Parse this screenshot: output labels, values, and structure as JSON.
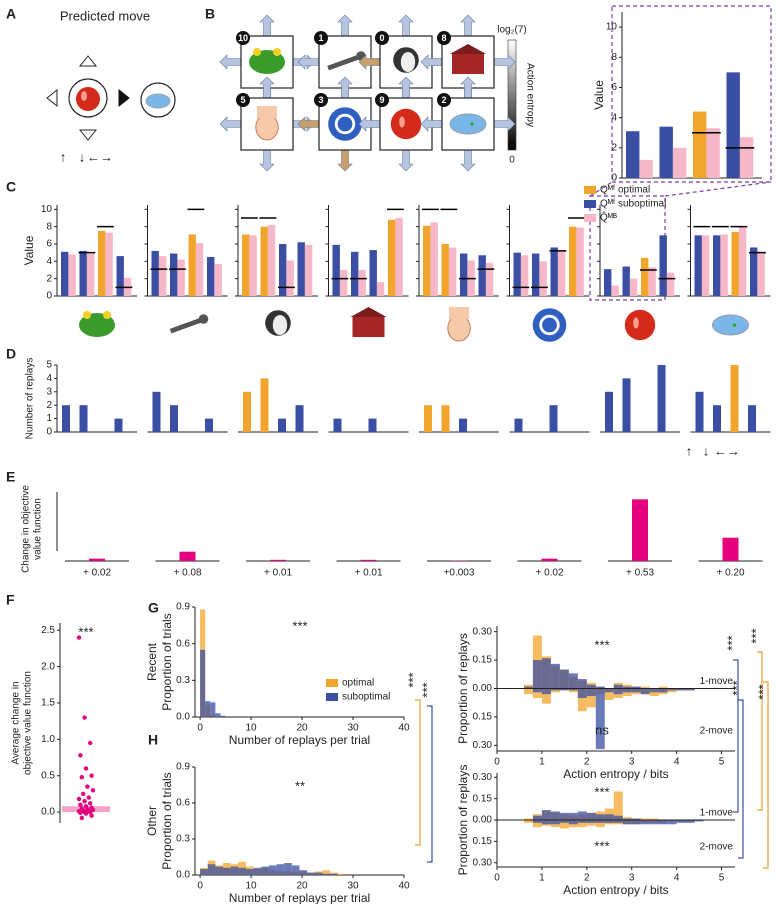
{
  "panel_labels": [
    "A",
    "B",
    "C",
    "D",
    "E",
    "F",
    "G",
    "H"
  ],
  "predicted_move": {
    "title": "Predicted move"
  },
  "state_graph": {
    "state_numbers": [
      "10",
      "1",
      "0",
      "8",
      "5",
      "3",
      "9",
      "2"
    ],
    "colorbar": {
      "top_label": "log₂(7)",
      "label": "Action entropy",
      "bottom_label": "0"
    }
  },
  "significance": {
    "left": [
      "***",
      "***"
    ],
    "right": [
      "***",
      "***",
      "***",
      "***"
    ]
  },
  "chart_data": [
    {
      "type": "qvalues",
      "ylabel": "Value",
      "ylim": [
        0,
        11
      ],
      "yticks": [
        0,
        2,
        4,
        6,
        8,
        10
      ],
      "colors": {
        "optimal": "#f2a52c",
        "suboptimal": "#3a4fa3",
        "mb": "#f6b8c8",
        "marker": "#000000"
      },
      "panels": [
        {
          "mf": [
            3.1,
            3.4,
            4.4,
            7.0
          ],
          "mb": [
            1.2,
            2.0,
            3.3,
            2.7
          ],
          "optimal": [
            false,
            false,
            true,
            false
          ],
          "marker": [
            null,
            null,
            3.0,
            2.0
          ]
        }
      ]
    },
    {
      "type": "qvalues",
      "ylabel": "Value",
      "ylim": [
        0,
        10.5
      ],
      "yticks": [
        0,
        2,
        4,
        6,
        8,
        10
      ],
      "colors": {
        "optimal": "#f2a52c",
        "suboptimal": "#3a4fa3",
        "mb": "#f6b8c8",
        "marker": "#000000"
      },
      "legend": [
        {
          "name": "Qᴹᶠ optimal",
          "color": "#f2a52c"
        },
        {
          "name": "Qᴹᶠ suboptimal",
          "color": "#3a4fa3"
        },
        {
          "name": "Q̂ᴹᴮ",
          "color": "#f6b8c8"
        }
      ],
      "action_labels": [
        "↑",
        "↓",
        "←→"
      ],
      "panels": [
        {
          "mf": [
            5.1,
            5.2,
            7.5,
            4.6
          ],
          "mb": [
            4.8,
            4.9,
            7.3,
            2.1
          ],
          "optimal": [
            false,
            false,
            true,
            false
          ],
          "marker": [
            null,
            5.0,
            8.0,
            1.0
          ]
        },
        {
          "mf": [
            5.2,
            4.9,
            7.1,
            4.5
          ],
          "mb": [
            4.6,
            4.2,
            6.1,
            3.7
          ],
          "optimal": [
            false,
            false,
            true,
            false
          ],
          "marker": [
            3.1,
            3.1,
            10.0,
            null
          ]
        },
        {
          "mf": [
            7.1,
            8.0,
            6.0,
            6.2
          ],
          "mb": [
            7.0,
            8.2,
            4.1,
            5.9
          ],
          "optimal": [
            true,
            true,
            false,
            false
          ],
          "marker": [
            9.0,
            9.0,
            1.0,
            null
          ]
        },
        {
          "mf": [
            5.9,
            5.1,
            5.3,
            8.8
          ],
          "mb": [
            3.0,
            3.0,
            1.6,
            9.0
          ],
          "optimal": [
            false,
            false,
            false,
            true
          ],
          "marker": [
            2.0,
            2.0,
            null,
            10.0
          ]
        },
        {
          "mf": [
            8.1,
            6.0,
            4.9,
            4.7
          ],
          "mb": [
            8.5,
            5.6,
            4.1,
            3.8
          ],
          "optimal": [
            true,
            true,
            false,
            false
          ],
          "marker": [
            10.0,
            10.0,
            2.0,
            3.1
          ]
        },
        {
          "mf": [
            5.0,
            4.9,
            5.6,
            8.0
          ],
          "mb": [
            4.7,
            4.0,
            5.3,
            7.9
          ],
          "optimal": [
            false,
            false,
            false,
            true
          ],
          "marker": [
            1.0,
            1.0,
            5.2,
            9.0
          ]
        },
        {
          "mf": [
            3.1,
            3.4,
            4.4,
            7.0
          ],
          "mb": [
            1.2,
            2.0,
            3.3,
            2.7
          ],
          "optimal": [
            false,
            false,
            true,
            false
          ],
          "marker": [
            null,
            null,
            3.0,
            2.0
          ]
        },
        {
          "mf": [
            7.0,
            7.0,
            7.4,
            5.6
          ],
          "mb": [
            7.0,
            7.1,
            8.0,
            5.1
          ],
          "optimal": [
            false,
            false,
            true,
            false
          ],
          "marker": [
            8.0,
            8.0,
            8.0,
            5.0
          ]
        }
      ]
    },
    {
      "type": "replays",
      "ylabel": "Number of replays",
      "ylim": [
        0,
        5
      ],
      "yticks": [
        0,
        1,
        2,
        3,
        4,
        5
      ],
      "colors": {
        "optimal": "#f2a52c",
        "suboptimal": "#3a4fa3"
      },
      "action_labels": [
        "↑",
        "↓",
        "←→"
      ],
      "panels": [
        {
          "values": [
            2,
            2,
            0,
            1
          ],
          "optimal": [
            false,
            false,
            false,
            false
          ]
        },
        {
          "values": [
            3,
            2,
            0,
            1
          ],
          "optimal": [
            false,
            false,
            false,
            false
          ]
        },
        {
          "values": [
            3,
            4,
            1,
            2
          ],
          "optimal": [
            true,
            true,
            false,
            false
          ]
        },
        {
          "values": [
            1,
            0,
            1,
            0
          ],
          "optimal": [
            false,
            false,
            false,
            false
          ]
        },
        {
          "values": [
            2,
            2,
            1,
            0
          ],
          "optimal": [
            true,
            true,
            false,
            false
          ]
        },
        {
          "values": [
            1,
            0,
            2,
            0
          ],
          "optimal": [
            false,
            false,
            false,
            false
          ]
        },
        {
          "values": [
            3,
            4,
            0,
            5
          ],
          "optimal": [
            false,
            false,
            false,
            false
          ]
        },
        {
          "values": [
            3,
            2,
            5,
            2
          ],
          "optimal": [
            false,
            false,
            true,
            false
          ]
        }
      ]
    },
    {
      "type": "change",
      "ylabel": [
        "Change in objective",
        "value function"
      ],
      "ylim": [
        0,
        0.55
      ],
      "color": "#e5007d",
      "values": [
        0.02,
        0.08,
        0.01,
        0.01,
        0.003,
        0.02,
        0.53,
        0.2
      ],
      "value_labels": [
        "+ 0.02",
        "+ 0.08",
        "+ 0.01",
        "+ 0.01",
        "+0.003",
        "+ 0.02",
        "+ 0.53",
        "+ 0.20"
      ]
    },
    {
      "type": "strip",
      "ylabel": [
        "Average change in",
        "objective value function"
      ],
      "ylim": [
        -0.15,
        2.6
      ],
      "yticks": [
        {
          "value": 0,
          "label": "0.0"
        },
        {
          "value": 0.5,
          "label": "0.5"
        },
        {
          "value": 1,
          "label": "1.0"
        },
        {
          "value": 1.5,
          "label": "1.5"
        },
        {
          "value": 2,
          "label": "2.0"
        },
        {
          "value": 2.5,
          "label": "2.5"
        }
      ],
      "color": "#e5007d",
      "mean_color": "#f3a3c9",
      "mean": 0.08,
      "values": [
        2.4,
        1.3,
        0.95,
        0.78,
        0.6,
        0.5,
        0.48,
        0.35,
        0.3,
        0.25,
        0.2,
        0.18,
        0.15,
        0.12,
        0.1,
        0.08,
        0.06,
        0.05,
        0.04,
        0.03,
        0.02,
        0.01,
        0.01,
        0,
        0,
        -0.01,
        -0.02,
        -0.05,
        -0.08
      ],
      "annotation": "***"
    },
    {
      "type": "histogram",
      "row_label": "Recent",
      "ylabel": "Proportion of trials",
      "xlabel": "Number of replays per trial",
      "xlim": [
        -1,
        40
      ],
      "xticks": [
        0,
        10,
        20,
        30,
        40
      ],
      "ylim": [
        0,
        0.9
      ],
      "yticks": [
        {
          "value": 0,
          "label": "0.0"
        },
        {
          "value": 0.3,
          "label": "0.3"
        },
        {
          "value": 0.6,
          "label": "0.6"
        },
        {
          "value": 0.9,
          "label": "0.9"
        }
      ],
      "bins": [
        0,
        1,
        2,
        3,
        4,
        5,
        6,
        7,
        8,
        9,
        10
      ],
      "series": [
        {
          "name": "optimal",
          "color": "#f2a52c",
          "values": [
            0.88,
            0.1,
            0.02,
            0.005,
            0,
            0,
            0,
            0,
            0,
            0
          ]
        },
        {
          "name": "suboptimal",
          "color": "#3a4fa3",
          "values": [
            0.55,
            0.13,
            0.12,
            0.03,
            0.01,
            0,
            0,
            0,
            0,
            0
          ]
        }
      ],
      "annotation": "***"
    },
    {
      "type": "mirrored_histogram",
      "ylabel": "Proportion of replays",
      "xlabel": "Action entropy / bits",
      "xlim": [
        0,
        5.3
      ],
      "xticks": [
        0,
        1,
        2,
        3,
        4,
        5
      ],
      "ylim": [
        -0.33,
        0.33
      ],
      "yticks": [
        {
          "value": 0.3,
          "label": "0.30"
        },
        {
          "value": 0.15,
          "label": "0.15"
        },
        {
          "value": 0,
          "label": "0.00"
        },
        {
          "value": -0.15,
          "label": "0.15"
        },
        {
          "value": -0.3,
          "label": "0.30"
        }
      ],
      "bins": [
        0.6,
        0.8,
        1.0,
        1.2,
        1.4,
        1.6,
        1.8,
        2.0,
        2.2,
        2.4,
        2.6,
        2.8,
        3.0,
        3.2,
        3.4,
        3.6,
        3.8,
        4.0,
        4.2,
        4.4,
        4.6
      ],
      "top_label": "1-move",
      "bottom_label": "2-move",
      "top_series": [
        {
          "color": "#f2a52c",
          "values": [
            0.02,
            0.28,
            0.17,
            0.12,
            0.1,
            0.06,
            0.04,
            0.03,
            0.01,
            0,
            0.03,
            0.02,
            0.01,
            0.01,
            0,
            0.01,
            0,
            0,
            0,
            0
          ]
        },
        {
          "color": "#3a4fa3",
          "values": [
            0.01,
            0.15,
            0.16,
            0.13,
            0.1,
            0.08,
            0.05,
            0.02,
            0.01,
            0,
            0.02,
            0.01,
            0.01,
            0,
            0,
            0,
            0,
            0,
            0,
            0
          ]
        }
      ],
      "bottom_series": [
        {
          "color": "#f2a52c",
          "values": [
            -0.03,
            -0.05,
            -0.08,
            -0.02,
            -0.01,
            -0.02,
            -0.12,
            -0.1,
            -0.03,
            -0.06,
            -0.05,
            -0.04,
            -0.03,
            -0.03,
            -0.04,
            -0.03,
            -0.02,
            -0.01,
            -0.01,
            0
          ]
        },
        {
          "color": "#3a4fa3",
          "values": [
            0,
            -0.02,
            -0.03,
            -0.01,
            -0.01,
            -0.01,
            -0.05,
            -0.04,
            -0.32,
            -0.02,
            -0.03,
            -0.02,
            -0.02,
            -0.03,
            -0.02,
            -0.02,
            -0.01,
            -0.01,
            -0.01,
            0
          ]
        }
      ],
      "annotations": [
        "***",
        "ns"
      ]
    },
    {
      "type": "histogram",
      "row_label": "Other",
      "ylabel": "Proportion of trials",
      "xlabel": "Number of replays per trial",
      "xlim": [
        -1,
        40
      ],
      "xticks": [
        0,
        10,
        20,
        30,
        40
      ],
      "ylim": [
        0,
        0.9
      ],
      "yticks": [
        {
          "value": 0,
          "label": "0.0"
        },
        {
          "value": 0.3,
          "label": "0.3"
        },
        {
          "value": 0.6,
          "label": "0.6"
        },
        {
          "value": 0.9,
          "label": "0.9"
        }
      ],
      "bins": [
        0,
        1.5,
        3,
        4.5,
        6,
        7.5,
        9,
        10.5,
        12,
        13.5,
        15,
        16.5,
        18,
        19.5,
        21,
        22.5,
        24,
        25.5,
        27,
        28.5,
        30
      ],
      "series": [
        {
          "color": "#f2a52c",
          "values": [
            0.06,
            0.12,
            0.08,
            0.1,
            0.09,
            0.11,
            0.07,
            0.05,
            0.06,
            0.04,
            0.03,
            0.03,
            0.02,
            0.03,
            0.02,
            0.03,
            0.04,
            0.02,
            0.01,
            0
          ]
        },
        {
          "color": "#3a4fa3",
          "values": [
            0.05,
            0.09,
            0.07,
            0.06,
            0.07,
            0.06,
            0.05,
            0.06,
            0.07,
            0.08,
            0.09,
            0.1,
            0.08,
            0.04,
            0.02,
            0.02,
            0.01,
            0.01,
            0,
            0
          ]
        }
      ],
      "annotation": "**"
    },
    {
      "type": "mirrored_histogram",
      "ylabel": "Proportion of replays",
      "xlabel": "Action entropy / bits",
      "xlim": [
        0,
        5.3
      ],
      "xticks": [
        0,
        1,
        2,
        3,
        4,
        5
      ],
      "ylim": [
        -0.33,
        0.33
      ],
      "yticks": [
        {
          "value": 0.3,
          "label": "0.30"
        },
        {
          "value": 0.15,
          "label": "0.15"
        },
        {
          "value": 0,
          "label": "0.00"
        },
        {
          "value": -0.15,
          "label": "0.15"
        },
        {
          "value": -0.3,
          "label": "0.30"
        }
      ],
      "bins": [
        0.6,
        0.8,
        1.0,
        1.2,
        1.4,
        1.6,
        1.8,
        2.0,
        2.2,
        2.4,
        2.6,
        2.8,
        3.0,
        3.2,
        3.4,
        3.6,
        3.8,
        4.0,
        4.2,
        4.4,
        4.6
      ],
      "top_label": "1-move",
      "bottom_label": "2-move",
      "top_series": [
        {
          "color": "#f2a52c",
          "values": [
            0.01,
            0.04,
            0.06,
            0.05,
            0.04,
            0.03,
            0.04,
            0.05,
            0.06,
            0.08,
            0.2,
            0.02,
            0.01,
            0.01,
            0.01,
            0,
            0,
            0,
            0,
            0
          ]
        },
        {
          "color": "#3a4fa3",
          "values": [
            0,
            0.03,
            0.07,
            0.06,
            0.05,
            0.05,
            0.06,
            0.05,
            0.04,
            0.04,
            0.03,
            0.01,
            0.01,
            0,
            0,
            0,
            0,
            0,
            0,
            0
          ]
        }
      ],
      "bottom_series": [
        {
          "color": "#f2a52c",
          "values": [
            -0.02,
            -0.05,
            -0.04,
            -0.05,
            -0.06,
            -0.05,
            -0.05,
            -0.04,
            -0.05,
            -0.03,
            -0.03,
            -0.03,
            -0.03,
            -0.02,
            -0.02,
            -0.02,
            -0.01,
            -0.01,
            -0.01,
            0
          ]
        },
        {
          "color": "#3a4fa3",
          "values": [
            0,
            -0.02,
            -0.03,
            -0.03,
            -0.02,
            -0.03,
            -0.02,
            -0.02,
            -0.02,
            -0.02,
            -0.02,
            -0.03,
            -0.03,
            -0.03,
            -0.03,
            -0.03,
            -0.03,
            -0.02,
            -0.02,
            -0.01
          ]
        }
      ],
      "annotations": [
        "***",
        "***"
      ]
    }
  ]
}
